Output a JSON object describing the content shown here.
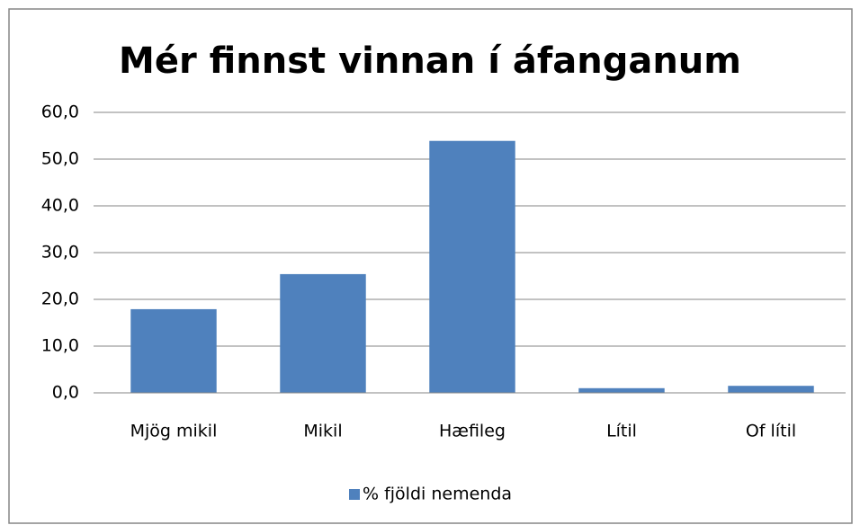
{
  "chart_data": {
    "type": "bar",
    "title": "Mér finnst vinnan í áfanganum",
    "categories": [
      "Mjög mikil",
      "Mikil",
      "Hæfileg",
      "Lítil",
      "Of lítil"
    ],
    "series": [
      {
        "name": "% fjöldi nemenda",
        "color": "#4f81bd",
        "values": [
          17.9,
          25.4,
          53.9,
          1.0,
          1.5
        ]
      }
    ],
    "ylim": [
      0,
      60
    ],
    "yticks": [
      {
        "value": 0,
        "label": "0,0"
      },
      {
        "value": 10,
        "label": "10,0"
      },
      {
        "value": 20,
        "label": "20,0"
      },
      {
        "value": 30,
        "label": "30,0"
      },
      {
        "value": 40,
        "label": "40,0"
      },
      {
        "value": 50,
        "label": "50,0"
      },
      {
        "value": 60,
        "label": "60,0"
      }
    ],
    "grid": true,
    "legend": "bottom"
  }
}
